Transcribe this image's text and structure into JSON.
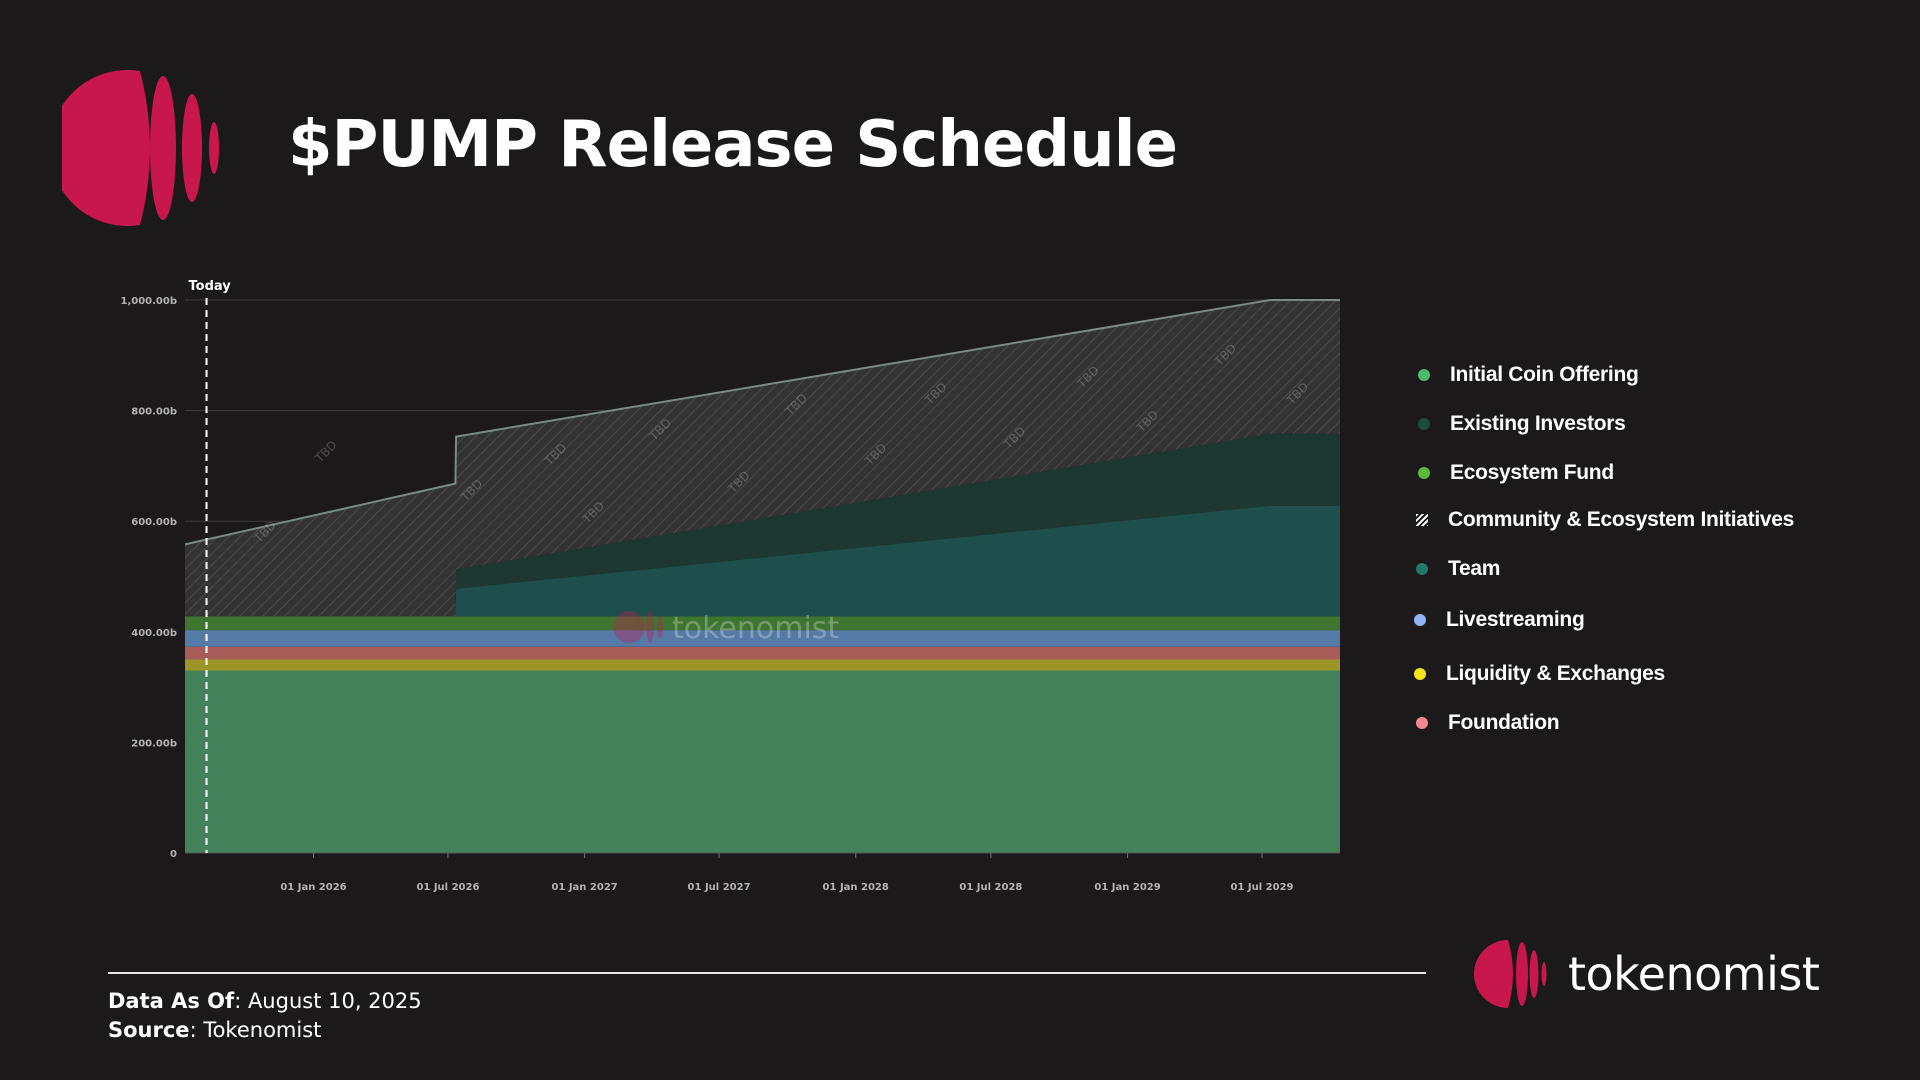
{
  "page": {
    "title": "$PUMP Release Schedule"
  },
  "colors": {
    "background": "#1b191a",
    "brand": "#c8164e",
    "ico": "#47885f",
    "existing_investors": "#1c3a32",
    "ecosystem_fund": "#3f7a33",
    "community": "#333333",
    "team": "#1f524f",
    "livestreaming": "#5a7fae",
    "liquidity": "#a19c25",
    "foundation": "#b0605c"
  },
  "chart_data": {
    "type": "area",
    "title": "$PUMP Release Schedule",
    "ylabel": "",
    "xlabel": "",
    "ylim": [
      0,
      1000
    ],
    "xlim": [
      "2025-07-12",
      "2029-10-14"
    ],
    "y_ticks": [
      {
        "value": 0,
        "label": "0"
      },
      {
        "value": 200,
        "label": "200.00b"
      },
      {
        "value": 400,
        "label": "400.00b"
      },
      {
        "value": 600,
        "label": "600.00b"
      },
      {
        "value": 800,
        "label": "800.00b"
      },
      {
        "value": 1000,
        "label": "1,000.00b"
      }
    ],
    "x_ticks": [
      {
        "date": "2026-01-01",
        "label": "01 Jan 2026"
      },
      {
        "date": "2026-07-01",
        "label": "01 Jul 2026"
      },
      {
        "date": "2027-01-01",
        "label": "01 Jan 2027"
      },
      {
        "date": "2027-07-01",
        "label": "01 Jul 2027"
      },
      {
        "date": "2028-01-01",
        "label": "01 Jan 2028"
      },
      {
        "date": "2028-07-01",
        "label": "01 Jul 2028"
      },
      {
        "date": "2029-01-01",
        "label": "01 Jan 2029"
      },
      {
        "date": "2029-07-01",
        "label": "01 Jul 2029"
      }
    ],
    "today": {
      "date": "2025-08-10",
      "label": "Today"
    },
    "watermark": "tokenomist",
    "tbd_label": "TBD",
    "series": [
      {
        "key": "ico",
        "name": "Initial Coin Offering",
        "color": "#47885f",
        "points": [
          [
            "2025-07-12",
            330
          ],
          [
            "2029-10-14",
            330
          ]
        ]
      },
      {
        "key": "liquidity",
        "name": "Liquidity & Exchanges",
        "color": "#a19c25",
        "points": [
          [
            "2025-07-12",
            20
          ],
          [
            "2029-10-14",
            20
          ]
        ]
      },
      {
        "key": "foundation",
        "name": "Foundation",
        "color": "#b0605c",
        "points": [
          [
            "2025-07-12",
            23
          ],
          [
            "2029-10-14",
            23
          ]
        ]
      },
      {
        "key": "livestreaming",
        "name": "Livestreaming",
        "color": "#5a7fae",
        "points": [
          [
            "2025-07-12",
            30
          ],
          [
            "2029-10-14",
            30
          ]
        ]
      },
      {
        "key": "ecosystem_fund",
        "name": "Ecosystem Fund",
        "color": "#3f7a33",
        "points": [
          [
            "2025-07-12",
            25
          ],
          [
            "2029-10-14",
            25
          ]
        ]
      },
      {
        "key": "team",
        "name": "Team",
        "color": "#1f524f",
        "points": [
          [
            "2025-07-12",
            0
          ],
          [
            "2026-07-11",
            0
          ],
          [
            "2026-07-12",
            50
          ],
          [
            "2029-07-12",
            200
          ],
          [
            "2029-10-14",
            200
          ]
        ]
      },
      {
        "key": "existing_investors",
        "name": "Existing Investors",
        "color": "#1c3a32",
        "points": [
          [
            "2025-07-12",
            0
          ],
          [
            "2026-07-11",
            0
          ],
          [
            "2026-07-12",
            35
          ],
          [
            "2029-07-12",
            130
          ],
          [
            "2029-10-14",
            130
          ]
        ]
      },
      {
        "key": "community",
        "name": "Community & Ecosystem Initiatives",
        "color": "#333333",
        "hatched": true,
        "points": [
          [
            "2025-07-12",
            130
          ],
          [
            "2026-07-11",
            240
          ],
          [
            "2026-07-12",
            240
          ],
          [
            "2029-07-12",
            242
          ],
          [
            "2029-10-14",
            242
          ]
        ]
      }
    ]
  },
  "legend": [
    {
      "key": "ico",
      "label": "Initial Coin Offering",
      "color": "#4cbb6c",
      "marker": "dot"
    },
    {
      "key": "existing_investors",
      "label": "Existing Investors",
      "color": "#1e4a3b",
      "marker": "dot"
    },
    {
      "key": "ecosystem_fund",
      "label": "Ecosystem Fund",
      "color": "#5cb83a",
      "marker": "dot"
    },
    {
      "key": "community",
      "label": "Community & Ecosystem Initiatives",
      "color": "#ffffff",
      "marker": "hatch"
    },
    {
      "key": "team",
      "label": "Team",
      "color": "#1f7a66",
      "marker": "dot"
    },
    {
      "key": "livestreaming",
      "label": "Livestreaming",
      "color": "#8fb4f0",
      "marker": "dot"
    },
    {
      "key": "liquidity",
      "label": "Liquidity & Exchanges",
      "color": "#f4e41a",
      "marker": "dot"
    },
    {
      "key": "foundation",
      "label": "Foundation",
      "color": "#f4888c",
      "marker": "dot"
    }
  ],
  "footer": {
    "data_as_of_label": "Data As Of",
    "data_as_of_value": ": August 10, 2025",
    "source_label": "Source",
    "source_value": ": Tokenomist"
  },
  "brand": {
    "name": "tokenomist"
  }
}
